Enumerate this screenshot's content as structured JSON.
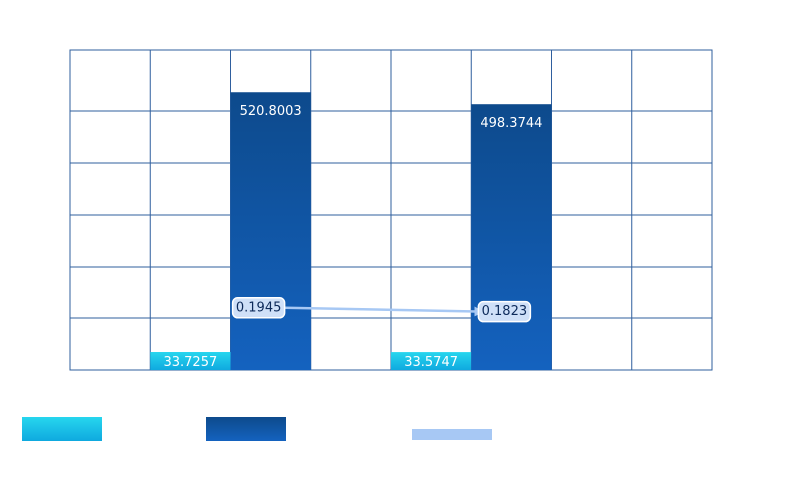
{
  "colors": {
    "series_a": "#13b6e6",
    "series_b_top": "#0d4a8c",
    "series_b_bottom": "#1462bf",
    "series_c": "#a7c8f4",
    "grid": "#2f5f9e",
    "label_box_fill": "#cfe0f8",
    "label_box_stroke": "#ffffff"
  },
  "chart_data": {
    "type": "bar",
    "grid": true,
    "legend_position": "bottom",
    "groups": [
      {
        "a": 33.7257,
        "a_label": "33.7257",
        "b": 520.8003,
        "b_label": "520.8003",
        "c": 0.1945,
        "c_label": "0.1945"
      },
      {
        "a": 33.5747,
        "a_label": "33.5747",
        "b": 498.3744,
        "b_label": "498.3744",
        "c": 0.1823,
        "c_label": "0.1823"
      }
    ],
    "series": [
      {
        "key": "a",
        "kind": "bar"
      },
      {
        "key": "b",
        "kind": "bar"
      },
      {
        "key": "c",
        "kind": "line",
        "axis": "secondary"
      }
    ],
    "ylim": [
      0,
      600
    ],
    "y2lim": [
      0,
      1
    ]
  }
}
